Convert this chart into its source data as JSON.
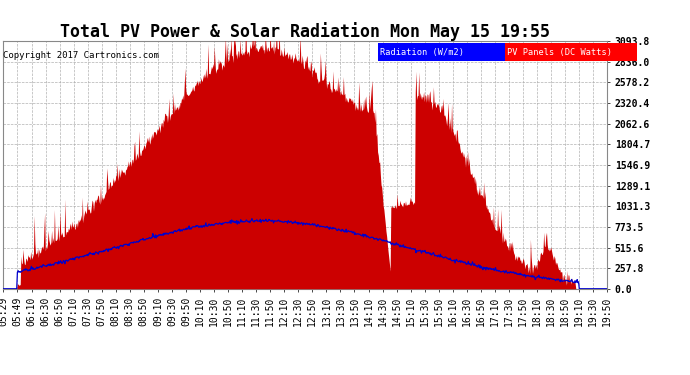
{
  "title": "Total PV Power & Solar Radiation Mon May 15 19:55",
  "copyright": "Copyright 2017 Cartronics.com",
  "legend_radiation": "Radiation (W/m2)",
  "legend_pv": "PV Panels (DC Watts)",
  "yticks": [
    0.0,
    257.8,
    515.6,
    773.5,
    1031.3,
    1289.1,
    1546.9,
    1804.7,
    2062.6,
    2320.4,
    2578.2,
    2836.0,
    3093.8
  ],
  "ymax": 3093.8,
  "plot_bg_color": "#ffffff",
  "grid_color": "#aaaaaa",
  "pv_color": "#cc0000",
  "radiation_color": "#0000cc",
  "title_fontsize": 12,
  "tick_fontsize": 7,
  "xtick_labels": [
    "05:29",
    "05:49",
    "06:10",
    "06:30",
    "06:50",
    "07:10",
    "07:30",
    "07:50",
    "08:10",
    "08:30",
    "08:50",
    "09:10",
    "09:30",
    "09:50",
    "10:10",
    "10:30",
    "10:50",
    "11:10",
    "11:30",
    "11:50",
    "12:10",
    "12:30",
    "12:50",
    "13:10",
    "13:30",
    "13:50",
    "14:10",
    "14:30",
    "14:50",
    "15:10",
    "15:30",
    "15:50",
    "16:10",
    "16:30",
    "16:50",
    "17:10",
    "17:30",
    "17:50",
    "18:10",
    "18:30",
    "18:50",
    "19:10",
    "19:30",
    "19:50"
  ]
}
